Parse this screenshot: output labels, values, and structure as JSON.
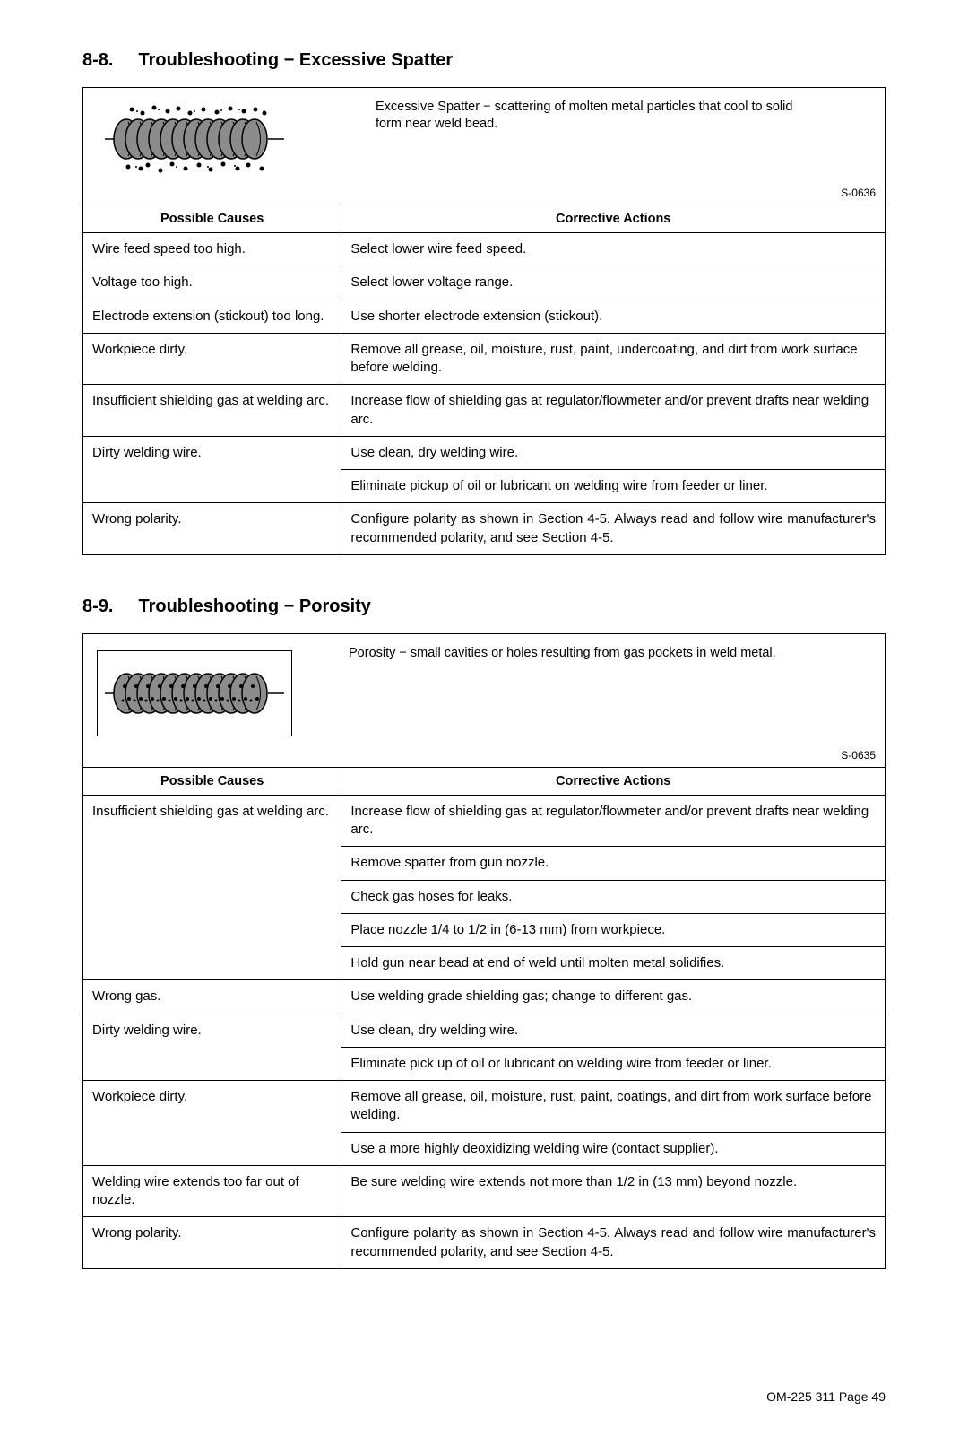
{
  "sections": [
    {
      "number": "8-8.",
      "title": "Troubleshooting − Excessive Spatter",
      "definition": "Excessive Spatter − scattering of molten metal particles that cool to solid form near weld bead.",
      "refcode": "S-0636",
      "illus_bordered": false,
      "table_headers": {
        "causes": "Possible Causes",
        "actions": "Corrective Actions"
      },
      "rows": [
        {
          "cause": "Wire feed speed too high.",
          "actions": [
            "Select lower wire feed speed."
          ]
        },
        {
          "cause": "Voltage too high.",
          "actions": [
            "Select lower voltage range."
          ]
        },
        {
          "cause": "Electrode extension (stickout) too long.",
          "actions": [
            "Use shorter electrode extension (stickout)."
          ]
        },
        {
          "cause": "Workpiece dirty.",
          "actions": [
            "Remove all grease, oil, moisture, rust, paint, undercoating, and dirt from work surface before welding."
          ]
        },
        {
          "cause": "Insufficient shielding gas at welding arc.",
          "actions": [
            "Increase flow of shielding gas at regulator/flowmeter and/or prevent drafts near welding arc."
          ]
        },
        {
          "cause": "Dirty welding wire.",
          "actions": [
            "Use clean, dry welding wire.",
            "Eliminate pickup of oil or lubricant on welding wire from feeder or liner."
          ]
        },
        {
          "cause": "Wrong polarity.",
          "actions": [
            "Configure polarity as shown in Section 4-5. Always read and follow wire manufacturer's recommended polarity, and see Section 4-5."
          ],
          "justify": true
        }
      ]
    },
    {
      "number": "8-9.",
      "title": "Troubleshooting − Porosity",
      "definition": "Porosity − small cavities or holes resulting from gas pockets in weld metal.",
      "refcode": "S-0635",
      "illus_bordered": true,
      "table_headers": {
        "causes": "Possible Causes",
        "actions": "Corrective Actions"
      },
      "rows": [
        {
          "cause": "Insufficient shielding gas at welding arc.",
          "actions": [
            "Increase flow of shielding gas at regulator/flowmeter and/or prevent drafts near welding arc.",
            "Remove spatter from gun nozzle.",
            "Check gas hoses for leaks.",
            "Place nozzle 1/4 to 1/2 in (6-13 mm) from workpiece.",
            "Hold gun near bead at end of weld until molten metal solidifies."
          ]
        },
        {
          "cause": "Wrong gas.",
          "actions": [
            "Use welding grade shielding gas; change to different gas."
          ]
        },
        {
          "cause": "Dirty welding wire.",
          "actions": [
            "Use clean, dry welding wire.",
            "Eliminate pick up of oil or lubricant on welding wire from feeder or liner."
          ]
        },
        {
          "cause": "Workpiece dirty.",
          "actions": [
            "Remove all grease, oil, moisture, rust, paint, coatings, and dirt from work surface before welding.",
            "Use a more highly deoxidizing welding wire (contact supplier)."
          ]
        },
        {
          "cause": "Welding wire extends too far out of nozzle.",
          "actions": [
            "Be sure welding wire extends not more than 1/2 in (13 mm) beyond nozzle."
          ]
        },
        {
          "cause": "Wrong polarity.",
          "actions": [
            "Configure polarity as shown in Section 4-5. Always read and follow wire manufacturer's recommended polarity, and see Section 4-5."
          ],
          "justify": true
        }
      ]
    }
  ],
  "footer": "OM-225 311 Page 49",
  "style": {
    "illus_fill": "#8c8c8c",
    "illus_stroke": "#000000"
  }
}
